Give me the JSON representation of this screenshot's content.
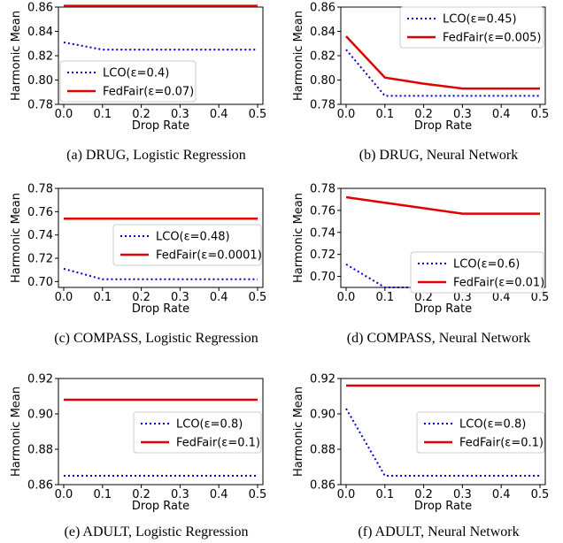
{
  "chart_data": [
    {
      "type": "line",
      "caption": "(a) DRUG, Logistic Regression",
      "xlabel": "Drop Rate",
      "ylabel": "Harmonic Mean",
      "xlim": [
        0.0,
        0.5
      ],
      "ylim": [
        0.78,
        0.86
      ],
      "xticks": [
        "0.0",
        "0.1",
        "0.2",
        "0.3",
        "0.4",
        "0.5"
      ],
      "yticks": [
        "0.78",
        "0.80",
        "0.82",
        "0.84",
        "0.86"
      ],
      "legend_position": "lower-left",
      "x": [
        0.0,
        0.1,
        0.2,
        0.3,
        0.4,
        0.5
      ],
      "series": [
        {
          "name": "LCO(ε=0.4)",
          "color": "#0000cc",
          "style": "dotted",
          "values": [
            0.831,
            0.825,
            0.825,
            0.825,
            0.825,
            0.825
          ]
        },
        {
          "name": "FedFair(ε=0.07)",
          "color": "#e00000",
          "style": "solid",
          "values": [
            0.861,
            0.861,
            0.861,
            0.861,
            0.861,
            0.861
          ]
        }
      ]
    },
    {
      "type": "line",
      "caption": "(b) DRUG, Neural Network",
      "xlabel": "Drop Rate",
      "ylabel": "Harmonic Mean",
      "xlim": [
        0.0,
        0.5
      ],
      "ylim": [
        0.78,
        0.86
      ],
      "xticks": [
        "0.0",
        "0.1",
        "0.2",
        "0.3",
        "0.4",
        "0.5"
      ],
      "yticks": [
        "0.78",
        "0.80",
        "0.82",
        "0.84",
        "0.86"
      ],
      "legend_position": "upper-right",
      "x": [
        0.0,
        0.1,
        0.2,
        0.3,
        0.4,
        0.5
      ],
      "series": [
        {
          "name": "LCO(ε=0.45)",
          "color": "#0000cc",
          "style": "dotted",
          "values": [
            0.825,
            0.787,
            0.787,
            0.787,
            0.787,
            0.787
          ]
        },
        {
          "name": "FedFair(ε=0.005)",
          "color": "#e00000",
          "style": "solid",
          "values": [
            0.836,
            0.802,
            0.797,
            0.793,
            0.793,
            0.793
          ]
        }
      ]
    },
    {
      "type": "line",
      "caption": "(c) COMPASS, Logistic Regression",
      "xlabel": "Drop Rate",
      "ylabel": "Harmonic Mean",
      "xlim": [
        0.0,
        0.5
      ],
      "ylim": [
        0.695,
        0.78
      ],
      "xticks": [
        "0.0",
        "0.1",
        "0.2",
        "0.3",
        "0.4",
        "0.5"
      ],
      "yticks": [
        "0.70",
        "0.72",
        "0.74",
        "0.76",
        "0.78"
      ],
      "legend_position": "center-right",
      "x": [
        0.0,
        0.1,
        0.2,
        0.3,
        0.4,
        0.5
      ],
      "series": [
        {
          "name": "LCO(ε=0.48)",
          "color": "#0000cc",
          "style": "dotted",
          "values": [
            0.711,
            0.702,
            0.702,
            0.702,
            0.702,
            0.702
          ]
        },
        {
          "name": "FedFair(ε=0.0001)",
          "color": "#e00000",
          "style": "solid",
          "values": [
            0.754,
            0.754,
            0.754,
            0.754,
            0.754,
            0.754
          ]
        }
      ]
    },
    {
      "type": "line",
      "caption": "(d) COMPASS, Neural Network",
      "xlabel": "Drop Rate",
      "ylabel": "Harmonic Mean",
      "xlim": [
        0.0,
        0.5
      ],
      "ylim": [
        0.69,
        0.78
      ],
      "xticks": [
        "0.0",
        "0.1",
        "0.2",
        "0.3",
        "0.4",
        "0.5"
      ],
      "yticks": [
        "0.70",
        "0.72",
        "0.74",
        "0.76",
        "0.78"
      ],
      "legend_position": "lower-right",
      "x": [
        0.0,
        0.1,
        0.2,
        0.3,
        0.4,
        0.5
      ],
      "series": [
        {
          "name": "LCO(ε=0.6)",
          "color": "#0000cc",
          "style": "dotted",
          "values": [
            0.711,
            0.69,
            0.69,
            0.69,
            0.69,
            0.69
          ]
        },
        {
          "name": "FedFair(ε=0.01)",
          "color": "#e00000",
          "style": "solid",
          "values": [
            0.772,
            0.767,
            0.762,
            0.757,
            0.757,
            0.757
          ]
        }
      ]
    },
    {
      "type": "line",
      "caption": "(e) ADULT, Logistic Regression",
      "xlabel": "Drop Rate",
      "ylabel": "Harmonic Mean",
      "xlim": [
        0.0,
        0.5
      ],
      "ylim": [
        0.86,
        0.92
      ],
      "xticks": [
        "0.0",
        "0.1",
        "0.2",
        "0.3",
        "0.4",
        "0.5"
      ],
      "yticks": [
        "0.86",
        "0.88",
        "0.90",
        "0.92"
      ],
      "legend_position": "center-right",
      "x": [
        0.0,
        0.1,
        0.2,
        0.3,
        0.4,
        0.5
      ],
      "series": [
        {
          "name": "LCO(ε=0.8)",
          "color": "#0000cc",
          "style": "dotted",
          "values": [
            0.865,
            0.865,
            0.865,
            0.865,
            0.865,
            0.865
          ]
        },
        {
          "name": "FedFair(ε=0.1)",
          "color": "#e00000",
          "style": "solid",
          "values": [
            0.908,
            0.908,
            0.908,
            0.908,
            0.908,
            0.908
          ]
        }
      ]
    },
    {
      "type": "line",
      "caption": "(f) ADULT, Neural Network",
      "xlabel": "Drop Rate",
      "ylabel": "Harmonic Mean",
      "xlim": [
        0.0,
        0.5
      ],
      "ylim": [
        0.86,
        0.92
      ],
      "xticks": [
        "0.0",
        "0.1",
        "0.2",
        "0.3",
        "0.4",
        "0.5"
      ],
      "yticks": [
        "0.86",
        "0.88",
        "0.90",
        "0.92"
      ],
      "legend_position": "center-right",
      "x": [
        0.0,
        0.1,
        0.2,
        0.3,
        0.4,
        0.5
      ],
      "series": [
        {
          "name": "LCO(ε=0.8)",
          "color": "#0000cc",
          "style": "dotted",
          "values": [
            0.903,
            0.865,
            0.865,
            0.865,
            0.865,
            0.865
          ]
        },
        {
          "name": "FedFair(ε=0.1)",
          "color": "#e00000",
          "style": "solid",
          "values": [
            0.916,
            0.916,
            0.916,
            0.916,
            0.916,
            0.916
          ]
        }
      ]
    }
  ]
}
